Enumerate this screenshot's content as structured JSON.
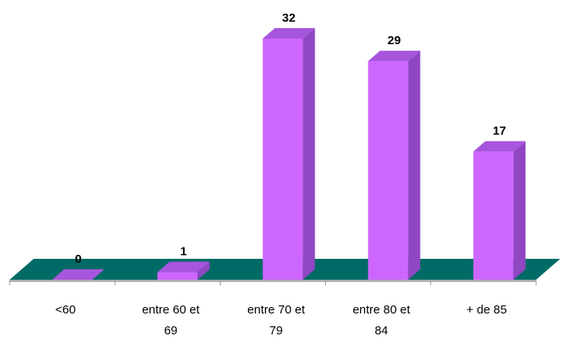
{
  "chart_data": {
    "type": "bar",
    "style": "3d-column",
    "categories": [
      [
        "<60"
      ],
      [
        "entre 60 et",
        "69"
      ],
      [
        "entre 70 et",
        "79"
      ],
      [
        "entre 80 et",
        "84"
      ],
      [
        "+ de 85"
      ]
    ],
    "values": [
      0,
      1,
      32,
      29,
      17
    ],
    "data_labels": [
      "0",
      "1",
      "32",
      "29",
      "17"
    ],
    "title": "",
    "xlabel": "",
    "ylabel": "",
    "ylim": [
      0,
      32
    ],
    "grid": false,
    "legend": "none",
    "colors": {
      "bar_front": "#cc66ff",
      "bar_side": "#8f47c2",
      "bar_top": "#a855dd",
      "floor": "#006b66",
      "floor_edge": "#bfbfbf"
    }
  }
}
